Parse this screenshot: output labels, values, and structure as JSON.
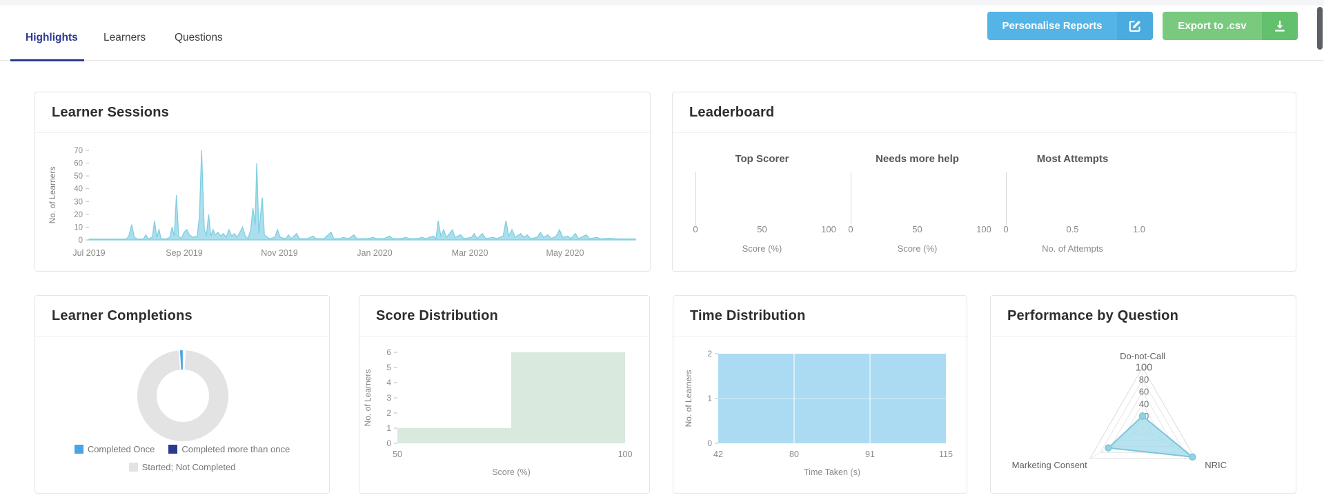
{
  "tabs": [
    {
      "label": "Highlights",
      "active": true
    },
    {
      "label": "Learners",
      "active": false
    },
    {
      "label": "Questions",
      "active": false
    }
  ],
  "toolbar": {
    "personalise_label": "Personalise Reports",
    "export_label": "Export to .csv"
  },
  "cards": {
    "sessions": {
      "title": "Learner Sessions"
    },
    "leaderboard": {
      "title": "Leaderboard"
    },
    "completions": {
      "title": "Learner Completions"
    },
    "score": {
      "title": "Score Distribution"
    },
    "time": {
      "title": "Time Distribution"
    },
    "performance": {
      "title": "Performance by Question"
    }
  },
  "colors": {
    "accent_blue": "#55b4e6",
    "accent_green": "#79ca7e",
    "tab_active": "#2b3990",
    "sessions_fill": "#abdeee",
    "sessions_stroke": "#7fcfe0",
    "donut_blue": "#4aa4e3",
    "donut_navy": "#2b3a8f",
    "donut_gray": "#e3e3e3",
    "score_fill": "#d9e9dd",
    "time_fill": "#abdbf2",
    "radar_fill": "#9fd8e9",
    "radar_stroke": "#7cc5da"
  },
  "chart_data": [
    {
      "name": "learner_sessions",
      "type": "area",
      "title": "Learner Sessions",
      "ylabel": "No. of Learners",
      "ylim": [
        0,
        70
      ],
      "yticks": [
        0,
        10,
        20,
        30,
        40,
        50,
        60,
        70
      ],
      "xticks": [
        "Jul 2019",
        "Sep 2019",
        "Nov 2019",
        "Jan 2020",
        "Mar 2020",
        "May 2020"
      ],
      "points": [
        [
          0,
          0.6
        ],
        [
          0.068,
          0.6
        ],
        [
          0.073,
          3
        ],
        [
          0.078,
          12
        ],
        [
          0.083,
          2
        ],
        [
          0.09,
          0.6
        ],
        [
          0.1,
          0.8
        ],
        [
          0.104,
          4
        ],
        [
          0.108,
          1
        ],
        [
          0.116,
          2
        ],
        [
          0.12,
          15
        ],
        [
          0.124,
          2
        ],
        [
          0.128,
          8
        ],
        [
          0.132,
          1
        ],
        [
          0.14,
          0.6
        ],
        [
          0.148,
          2
        ],
        [
          0.152,
          10
        ],
        [
          0.156,
          3
        ],
        [
          0.16,
          35
        ],
        [
          0.164,
          3
        ],
        [
          0.169,
          1
        ],
        [
          0.174,
          6
        ],
        [
          0.179,
          8
        ],
        [
          0.184,
          4
        ],
        [
          0.19,
          2
        ],
        [
          0.198,
          3
        ],
        [
          0.202,
          18
        ],
        [
          0.206,
          70
        ],
        [
          0.211,
          8
        ],
        [
          0.215,
          4
        ],
        [
          0.219,
          20
        ],
        [
          0.223,
          3
        ],
        [
          0.227,
          8
        ],
        [
          0.231,
          4
        ],
        [
          0.236,
          6
        ],
        [
          0.241,
          3
        ],
        [
          0.246,
          5
        ],
        [
          0.251,
          2
        ],
        [
          0.256,
          8
        ],
        [
          0.261,
          3
        ],
        [
          0.266,
          5
        ],
        [
          0.271,
          2
        ],
        [
          0.276,
          6
        ],
        [
          0.281,
          10
        ],
        [
          0.286,
          3
        ],
        [
          0.291,
          1
        ],
        [
          0.296,
          8
        ],
        [
          0.3,
          25
        ],
        [
          0.304,
          12
        ],
        [
          0.307,
          60
        ],
        [
          0.311,
          5
        ],
        [
          0.314,
          20
        ],
        [
          0.317,
          33
        ],
        [
          0.321,
          4
        ],
        [
          0.33,
          1
        ],
        [
          0.34,
          2
        ],
        [
          0.345,
          8
        ],
        [
          0.35,
          2
        ],
        [
          0.36,
          1
        ],
        [
          0.365,
          4
        ],
        [
          0.37,
          1
        ],
        [
          0.38,
          5
        ],
        [
          0.385,
          1
        ],
        [
          0.4,
          1
        ],
        [
          0.41,
          3
        ],
        [
          0.415,
          1
        ],
        [
          0.43,
          1
        ],
        [
          0.443,
          6
        ],
        [
          0.448,
          1
        ],
        [
          0.46,
          1
        ],
        [
          0.465,
          2
        ],
        [
          0.475,
          1
        ],
        [
          0.485,
          4
        ],
        [
          0.49,
          1
        ],
        [
          0.51,
          1
        ],
        [
          0.52,
          2
        ],
        [
          0.526,
          1
        ],
        [
          0.54,
          1
        ],
        [
          0.55,
          3
        ],
        [
          0.556,
          1
        ],
        [
          0.57,
          1
        ],
        [
          0.58,
          2
        ],
        [
          0.586,
          1
        ],
        [
          0.6,
          1
        ],
        [
          0.61,
          2
        ],
        [
          0.616,
          1
        ],
        [
          0.63,
          3
        ],
        [
          0.635,
          1
        ],
        [
          0.639,
          15
        ],
        [
          0.644,
          3
        ],
        [
          0.649,
          8
        ],
        [
          0.654,
          2
        ],
        [
          0.66,
          5
        ],
        [
          0.665,
          8
        ],
        [
          0.67,
          2
        ],
        [
          0.68,
          4
        ],
        [
          0.686,
          1
        ],
        [
          0.7,
          2
        ],
        [
          0.705,
          5
        ],
        [
          0.71,
          1
        ],
        [
          0.72,
          5
        ],
        [
          0.726,
          1
        ],
        [
          0.74,
          2
        ],
        [
          0.746,
          1
        ],
        [
          0.758,
          3
        ],
        [
          0.763,
          15
        ],
        [
          0.768,
          3
        ],
        [
          0.774,
          8
        ],
        [
          0.78,
          2
        ],
        [
          0.79,
          5
        ],
        [
          0.796,
          2
        ],
        [
          0.802,
          4
        ],
        [
          0.808,
          1
        ],
        [
          0.82,
          2
        ],
        [
          0.826,
          6
        ],
        [
          0.832,
          2
        ],
        [
          0.84,
          4
        ],
        [
          0.846,
          1
        ],
        [
          0.855,
          3
        ],
        [
          0.861,
          8
        ],
        [
          0.867,
          2
        ],
        [
          0.876,
          3
        ],
        [
          0.882,
          1
        ],
        [
          0.89,
          5
        ],
        [
          0.896,
          1
        ],
        [
          0.91,
          4
        ],
        [
          0.916,
          1
        ],
        [
          0.93,
          2
        ],
        [
          0.936,
          0.8
        ],
        [
          0.95,
          1.2
        ],
        [
          0.97,
          0.8
        ],
        [
          1,
          0.8
        ]
      ]
    },
    {
      "name": "leaderboard",
      "type": "bar",
      "title": "Leaderboard",
      "gauges": [
        {
          "title": "Top Scorer",
          "xlabel": "Score (%)",
          "ticks": [
            "0",
            "50",
            "100"
          ],
          "values": []
        },
        {
          "title": "Needs more help",
          "xlabel": "Score (%)",
          "ticks": [
            "0",
            "50",
            "100"
          ],
          "values": []
        },
        {
          "title": "Most Attempts",
          "xlabel": "No. of Attempts",
          "ticks": [
            "0",
            "0.5",
            "1.0"
          ],
          "values": []
        }
      ]
    },
    {
      "name": "learner_completions",
      "type": "pie",
      "title": "Learner Completions",
      "labels": [
        "Completed Once",
        "Completed more than once",
        "Started; Not Completed"
      ],
      "values_percent": [
        1.2,
        0,
        98.8
      ],
      "colors": [
        "#4aa4e3",
        "#2b3a8f",
        "#e3e3e3"
      ]
    },
    {
      "name": "score_distribution",
      "type": "bar",
      "title": "Score Distribution",
      "xlabel": "Score (%)",
      "ylabel": "No. of Learners",
      "ylim": [
        0,
        6
      ],
      "yticks": [
        0,
        1,
        2,
        3,
        4,
        5,
        6
      ],
      "xticks": [
        50,
        100
      ],
      "bins": [
        {
          "range": [
            50,
            75
          ],
          "count": 1
        },
        {
          "range": [
            75,
            100
          ],
          "count": 6
        }
      ]
    },
    {
      "name": "time_distribution",
      "type": "bar",
      "title": "Time Distribution",
      "xlabel": "Time Taken (s)",
      "ylabel": "No. of Learners",
      "ylim": [
        0,
        2
      ],
      "yticks": [
        0,
        1,
        2
      ],
      "xticks": [
        42,
        80,
        91,
        115
      ],
      "bins": [
        {
          "range": [
            42,
            115
          ],
          "count": 2
        }
      ]
    },
    {
      "name": "performance_by_question",
      "type": "radar",
      "title": "Performance by Question",
      "categories": [
        "Do-not-Call",
        "NRIC",
        "Marketing Consent"
      ],
      "values": [
        20,
        95,
        65
      ],
      "rings": [
        20,
        40,
        60,
        80,
        100
      ],
      "rlim": [
        0,
        100
      ]
    }
  ]
}
